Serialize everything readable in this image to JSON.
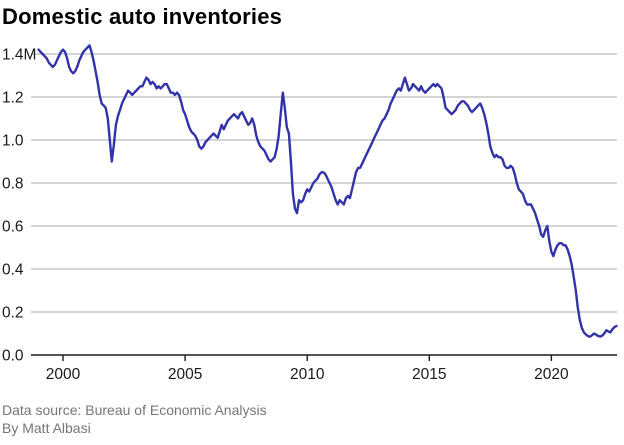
{
  "page": {
    "title": "Domestic auto inventories"
  },
  "footer": {
    "source": "Data source: Bureau of Economic Analysis",
    "byline": "By Matt Albasi"
  },
  "colors": {
    "line": "#3232AA",
    "grid": "#A9A9A9",
    "axis": "#1A1A1A",
    "tick_label": "#1A1A1A",
    "title": "#000000",
    "footer": "#767676",
    "background": "#FFFFFF"
  },
  "chart_data": {
    "type": "line",
    "title": "Domestic auto inventories",
    "xlabel": "",
    "ylabel": "",
    "unit": "millions of vehicles",
    "grid": "horizontal",
    "legend": "none",
    "x_axis": {
      "range": [
        1999.0,
        2022.75
      ],
      "tick_values": [
        2000,
        2005,
        2010,
        2015,
        2020
      ],
      "tick_labels": [
        "2000",
        "2005",
        "2010",
        "2015",
        "2020"
      ]
    },
    "y_axis": {
      "range": [
        0,
        1.4
      ],
      "tick_values": [
        0,
        0.2,
        0.4,
        0.6,
        0.8,
        1.0,
        1.2,
        1.4
      ],
      "tick_labels": [
        "0.0",
        "0.2",
        "0.4",
        "0.6",
        "0.8",
        "1.0",
        "1.2",
        "1.4M"
      ]
    },
    "series": [
      {
        "name": "Domestic auto inventories",
        "x_unit": "decimal year (monthly points, Jan 1999 - Sep 2022)",
        "x_start": 1999.0,
        "x_step": 0.08333,
        "values": [
          1.42,
          1.41,
          1.4,
          1.39,
          1.38,
          1.36,
          1.35,
          1.34,
          1.35,
          1.37,
          1.39,
          1.41,
          1.42,
          1.41,
          1.38,
          1.34,
          1.32,
          1.31,
          1.32,
          1.34,
          1.37,
          1.39,
          1.41,
          1.42,
          1.43,
          1.44,
          1.41,
          1.37,
          1.32,
          1.27,
          1.21,
          1.17,
          1.16,
          1.15,
          1.1,
          1.0,
          0.9,
          0.98,
          1.07,
          1.11,
          1.14,
          1.17,
          1.19,
          1.21,
          1.23,
          1.22,
          1.21,
          1.22,
          1.23,
          1.24,
          1.25,
          1.25,
          1.27,
          1.29,
          1.28,
          1.26,
          1.27,
          1.26,
          1.24,
          1.25,
          1.24,
          1.25,
          1.26,
          1.26,
          1.24,
          1.22,
          1.22,
          1.21,
          1.22,
          1.21,
          1.18,
          1.14,
          1.12,
          1.09,
          1.06,
          1.04,
          1.03,
          1.02,
          1.0,
          0.97,
          0.96,
          0.97,
          0.99,
          1.0,
          1.01,
          1.02,
          1.03,
          1.02,
          1.01,
          1.04,
          1.07,
          1.05,
          1.07,
          1.09,
          1.1,
          1.11,
          1.12,
          1.11,
          1.1,
          1.12,
          1.13,
          1.11,
          1.09,
          1.07,
          1.08,
          1.1,
          1.07,
          1.02,
          0.99,
          0.97,
          0.96,
          0.95,
          0.93,
          0.91,
          0.9,
          0.91,
          0.92,
          0.96,
          1.02,
          1.12,
          1.22,
          1.15,
          1.06,
          1.03,
          0.9,
          0.75,
          0.68,
          0.66,
          0.72,
          0.71,
          0.72,
          0.75,
          0.77,
          0.76,
          0.78,
          0.8,
          0.81,
          0.82,
          0.84,
          0.85,
          0.85,
          0.84,
          0.82,
          0.8,
          0.78,
          0.75,
          0.72,
          0.7,
          0.72,
          0.71,
          0.7,
          0.73,
          0.74,
          0.73,
          0.77,
          0.81,
          0.85,
          0.87,
          0.87,
          0.89,
          0.91,
          0.93,
          0.95,
          0.97,
          0.99,
          1.01,
          1.03,
          1.05,
          1.07,
          1.09,
          1.1,
          1.12,
          1.14,
          1.17,
          1.19,
          1.21,
          1.23,
          1.24,
          1.23,
          1.26,
          1.29,
          1.26,
          1.23,
          1.24,
          1.26,
          1.25,
          1.24,
          1.23,
          1.25,
          1.23,
          1.22,
          1.23,
          1.24,
          1.25,
          1.26,
          1.25,
          1.26,
          1.25,
          1.24,
          1.2,
          1.15,
          1.14,
          1.13,
          1.12,
          1.13,
          1.14,
          1.16,
          1.17,
          1.18,
          1.18,
          1.17,
          1.16,
          1.14,
          1.13,
          1.14,
          1.15,
          1.16,
          1.17,
          1.15,
          1.12,
          1.08,
          1.03,
          0.97,
          0.94,
          0.92,
          0.93,
          0.92,
          0.92,
          0.91,
          0.88,
          0.87,
          0.87,
          0.88,
          0.87,
          0.84,
          0.8,
          0.77,
          0.76,
          0.75,
          0.72,
          0.7,
          0.7,
          0.7,
          0.68,
          0.66,
          0.63,
          0.6,
          0.56,
          0.55,
          0.58,
          0.6,
          0.53,
          0.48,
          0.46,
          0.49,
          0.51,
          0.52,
          0.52,
          0.51,
          0.51,
          0.49,
          0.46,
          0.42,
          0.36,
          0.3,
          0.22,
          0.16,
          0.125,
          0.105,
          0.095,
          0.088,
          0.085,
          0.092,
          0.1,
          0.095,
          0.088,
          0.086,
          0.09,
          0.1,
          0.115,
          0.11,
          0.105,
          0.12,
          0.13,
          0.135
        ]
      }
    ]
  }
}
